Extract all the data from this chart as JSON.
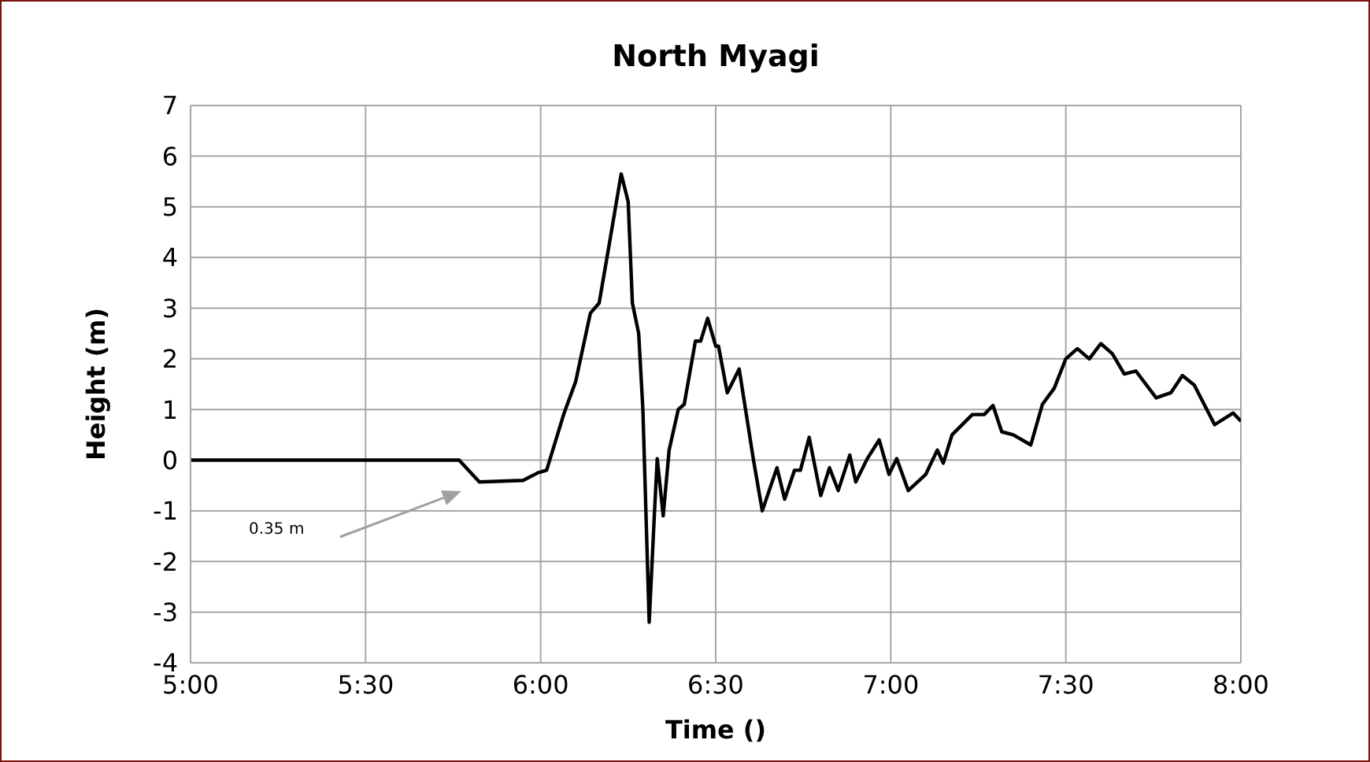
{
  "chart_data": {
    "type": "line",
    "title": "North Myagi",
    "xlabel": "Time ()",
    "ylabel": "Height (m)",
    "x": [
      5,
      5.767,
      5.825,
      5.95,
      5.992,
      6.017,
      6.067,
      6.1,
      6.142,
      6.167,
      6.192,
      6.23,
      6.25,
      6.262,
      6.28,
      6.292,
      6.31,
      6.325,
      6.333,
      6.35,
      6.367,
      6.393,
      6.41,
      6.442,
      6.457,
      6.477,
      6.5,
      6.508,
      6.533,
      6.567,
      6.608,
      6.633,
      6.675,
      6.697,
      6.725,
      6.742,
      6.767,
      6.8,
      6.825,
      6.85,
      6.883,
      6.9,
      6.933,
      6.967,
      6.995,
      7.017,
      7.05,
      7.1,
      7.133,
      7.15,
      7.175,
      7.233,
      7.267,
      7.292,
      7.317,
      7.35,
      7.4,
      7.433,
      7.467,
      7.5,
      7.533,
      7.567,
      7.6,
      7.633,
      7.667,
      7.7,
      7.758,
      7.8,
      7.833,
      7.867,
      7.925,
      7.978,
      8
    ],
    "series": [
      {
        "color": "#000000",
        "values": [
          0,
          0,
          -0.43,
          -0.4,
          -0.25,
          -0.2,
          0.93,
          1.55,
          2.9,
          3.1,
          4.1,
          5.65,
          5.1,
          3.1,
          2.5,
          1.0,
          -3.2,
          -1.05,
          0.03,
          -1.1,
          0.2,
          1.0,
          1.1,
          2.35,
          2.35,
          2.8,
          2.25,
          2.25,
          1.33,
          1.8,
          0,
          -1.0,
          -0.15,
          -0.77,
          -0.2,
          -0.2,
          0.45,
          -0.7,
          -0.15,
          -0.6,
          0.1,
          -0.43,
          0.03,
          0.4,
          -0.28,
          0.03,
          -0.6,
          -0.28,
          0.2,
          -0.06,
          0.5,
          0.9,
          0.9,
          1.08,
          0.56,
          0.5,
          0.3,
          1.1,
          1.42,
          2.0,
          2.2,
          2.0,
          2.3,
          2.1,
          1.7,
          1.76,
          1.23,
          1.33,
          1.67,
          1.48,
          0.7,
          0.93,
          0.77
        ]
      }
    ],
    "xlim": [
      5,
      8
    ],
    "xticks": [
      {
        "value": 5,
        "label": "5:00"
      },
      {
        "value": 5.5,
        "label": "5:30"
      },
      {
        "value": 6,
        "label": "6:00"
      },
      {
        "value": 6.5,
        "label": "6:30"
      },
      {
        "value": 7,
        "label": "7:00"
      },
      {
        "value": 7.5,
        "label": "7:30"
      },
      {
        "value": 8,
        "label": "8:00"
      }
    ],
    "ylim": [
      -4,
      7
    ],
    "yticks": [
      -4,
      -3,
      -2,
      -1,
      0,
      1,
      2,
      3,
      4,
      5,
      6,
      7
    ],
    "grid": true,
    "marker": "none",
    "line_style": "solid",
    "annotations": [
      "0.35 m"
    ]
  }
}
